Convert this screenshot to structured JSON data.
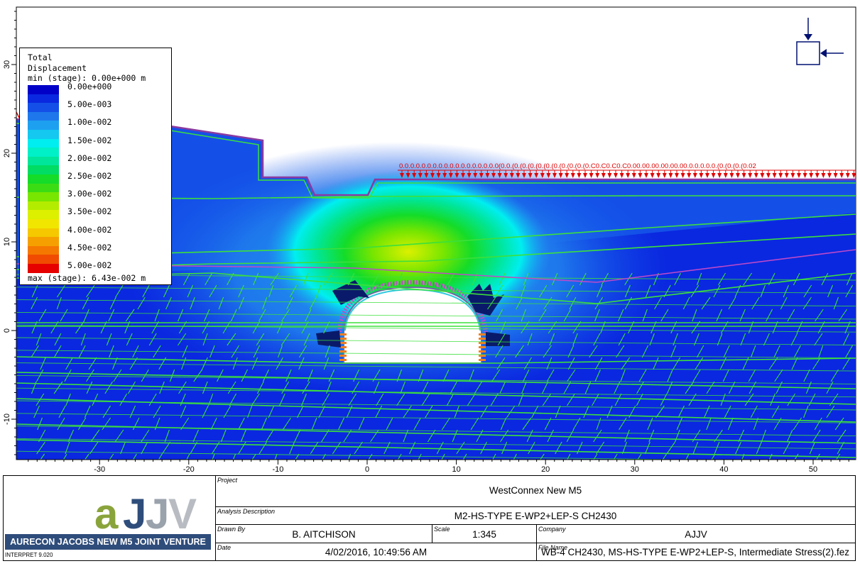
{
  "window": {
    "title": ""
  },
  "legend": {
    "title_line1": "Total",
    "title_line2": "Displacement",
    "min_text": "min (stage): 0.00e+000 m",
    "max_text": "max (stage): 6.43e-002 m",
    "entries": [
      {
        "label": "0.00e+000",
        "color": "#0000c8"
      },
      {
        "label": "",
        "color": "#0a28e0"
      },
      {
        "label": "5.00e-003",
        "color": "#1450e8"
      },
      {
        "label": "",
        "color": "#1e78ec"
      },
      {
        "label": "1.00e-002",
        "color": "#1ea0f0"
      },
      {
        "label": "",
        "color": "#14c8f0"
      },
      {
        "label": "1.50e-002",
        "color": "#00eef0"
      },
      {
        "label": "",
        "color": "#00f0c8"
      },
      {
        "label": "2.00e-002",
        "color": "#00e69a"
      },
      {
        "label": "",
        "color": "#00dc64"
      },
      {
        "label": "2.50e-002",
        "color": "#14dc28"
      },
      {
        "label": "",
        "color": "#3cdc14"
      },
      {
        "label": "3.00e-002",
        "color": "#78e600"
      },
      {
        "label": "",
        "color": "#b4ec00"
      },
      {
        "label": "3.50e-002",
        "color": "#dcf000"
      },
      {
        "label": "",
        "color": "#f0e600"
      },
      {
        "label": "4.00e-002",
        "color": "#f5c800"
      },
      {
        "label": "",
        "color": "#f5a000"
      },
      {
        "label": "4.50e-002",
        "color": "#f57800"
      },
      {
        "label": "",
        "color": "#f04b00"
      },
      {
        "label": "5.00e-002",
        "color": "#e60000"
      }
    ]
  },
  "axes": {
    "x_ticks": [
      "-30",
      "-20",
      "-10",
      "0",
      "10",
      "20",
      "30",
      "40",
      "50"
    ],
    "y_ticks": [
      "30",
      "20",
      "10",
      "0",
      "-10"
    ]
  },
  "load_label": "0.0.0.0.0.0.0.0.0.0.0.0.0.0.0.0.0.0(0.0.(0.(0.(0.(0.(0.(0.(0.(0.(0.(0.C0.C0.C0.C0.00.00.00.00.00.00.0.0.0.0.0.(0.(0.(0.(0.02",
  "titleblock": {
    "company_name": "AURECON JACOBS NEW M5 JOINT VENTURE",
    "version": "INTERPRET 9.020",
    "project_label": "Project",
    "project": "WestConnex New M5",
    "analysis_label": "Analysis Description",
    "analysis": "M2-HS-TYPE E-WP2+LEP-S CH2430",
    "drawn_by_label": "Drawn By",
    "drawn_by": "B. AITCHISON",
    "scale_label": "Scale",
    "scale": "1:345",
    "company_label": "Company",
    "company": "AJJV",
    "date_label": "Date",
    "date": "4/02/2016, 10:49:56 AM",
    "file_label": "File Name",
    "file": "WB-4 CH2430, MS-HS-TYPE E-WP2+LEP-S, Intermediate Stress(2).fez"
  },
  "logo": {
    "text": "aJJV",
    "colors": {
      "a": "#8aa43c",
      "j1": "#2f4d7b",
      "j2": "#9aa2ac",
      "v": "#b8bcc2"
    }
  }
}
